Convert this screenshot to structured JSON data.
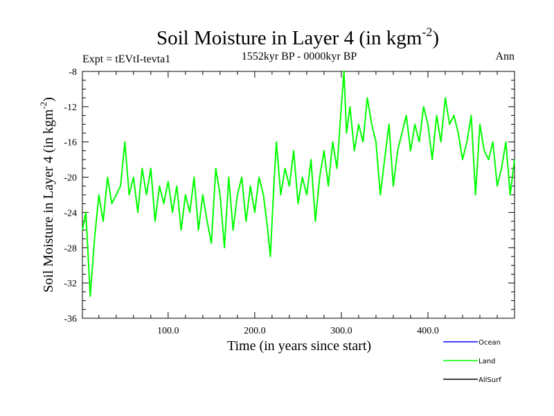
{
  "chart_data": {
    "type": "line",
    "title": "Soil Moisture in Layer 4 (in kgm",
    "title_superscript": "-2",
    "title_close": ")",
    "subtitle": "1552kyr BP - 0000kyr BP",
    "left_label": "Expt = tEVtI-tevta1",
    "right_label": "Ann",
    "xlabel": "Time (in years since start)",
    "ylabel": "Soil Moisture in Layer 4 (in kgm",
    "ylabel_superscript": "-2",
    "ylabel_close": ")",
    "xlim": [
      1,
      500
    ],
    "ylim": [
      -36,
      -8
    ],
    "x_ticks": [
      100,
      200,
      300,
      400
    ],
    "x_tick_labels": [
      "100.0",
      "200.0",
      "300.0",
      "400.0"
    ],
    "y_ticks": [
      -36,
      -32,
      -28,
      -24,
      -20,
      -16,
      -12,
      -8
    ],
    "y_tick_labels": [
      "-36",
      "-32",
      "-28",
      "-24",
      "-20",
      "-16",
      "-12",
      "-8"
    ],
    "grid": false,
    "legend_position": "bottom-right",
    "series": [
      {
        "name": "Ocean",
        "color": "#0000ff",
        "x": [],
        "values": []
      },
      {
        "name": "Land",
        "color": "#00ff00",
        "x": [
          1,
          5,
          10,
          15,
          20,
          25,
          30,
          35,
          40,
          45,
          50,
          55,
          60,
          65,
          70,
          75,
          80,
          85,
          90,
          95,
          100,
          105,
          110,
          115,
          120,
          125,
          130,
          135,
          140,
          145,
          150,
          155,
          160,
          165,
          170,
          175,
          180,
          185,
          190,
          195,
          200,
          205,
          210,
          215,
          218,
          222,
          225,
          230,
          235,
          240,
          245,
          250,
          255,
          260,
          265,
          270,
          275,
          280,
          285,
          290,
          295,
          300,
          303,
          306,
          310,
          315,
          320,
          325,
          330,
          335,
          340,
          345,
          350,
          355,
          360,
          365,
          370,
          375,
          380,
          385,
          390,
          395,
          400,
          405,
          410,
          415,
          420,
          425,
          430,
          435,
          440,
          445,
          450,
          455,
          460,
          465,
          470,
          475,
          480,
          485,
          490,
          495,
          500
        ],
        "values": [
          -26,
          -24,
          -33.5,
          -27,
          -22,
          -25,
          -20,
          -23,
          -22,
          -21,
          -16,
          -22,
          -20,
          -24,
          -19,
          -22,
          -19,
          -25,
          -21,
          -23,
          -20.5,
          -24,
          -21,
          -26,
          -22,
          -24,
          -20,
          -26,
          -22,
          -25,
          -27.5,
          -19,
          -22,
          -28,
          -20,
          -26,
          -22,
          -20,
          -25,
          -21,
          -24,
          -20,
          -22,
          -26,
          -29,
          -21,
          -16,
          -22,
          -19,
          -21,
          -17,
          -23,
          -20,
          -22,
          -18,
          -25,
          -20,
          -17,
          -21,
          -16,
          -19,
          -12,
          -8,
          -15,
          -12,
          -17,
          -14,
          -16,
          -11,
          -14,
          -16,
          -22,
          -18,
          -14,
          -21,
          -17,
          -15,
          -13,
          -17,
          -14,
          -16,
          -12,
          -14,
          -18,
          -13,
          -16,
          -11,
          -14,
          -13,
          -15,
          -18,
          -16,
          -13,
          -22,
          -14,
          -17,
          -18,
          -16,
          -21,
          -19,
          -16,
          -22,
          -18
        ]
      },
      {
        "name": "AllSurf",
        "color": "#000000",
        "x": [],
        "values": []
      }
    ]
  }
}
